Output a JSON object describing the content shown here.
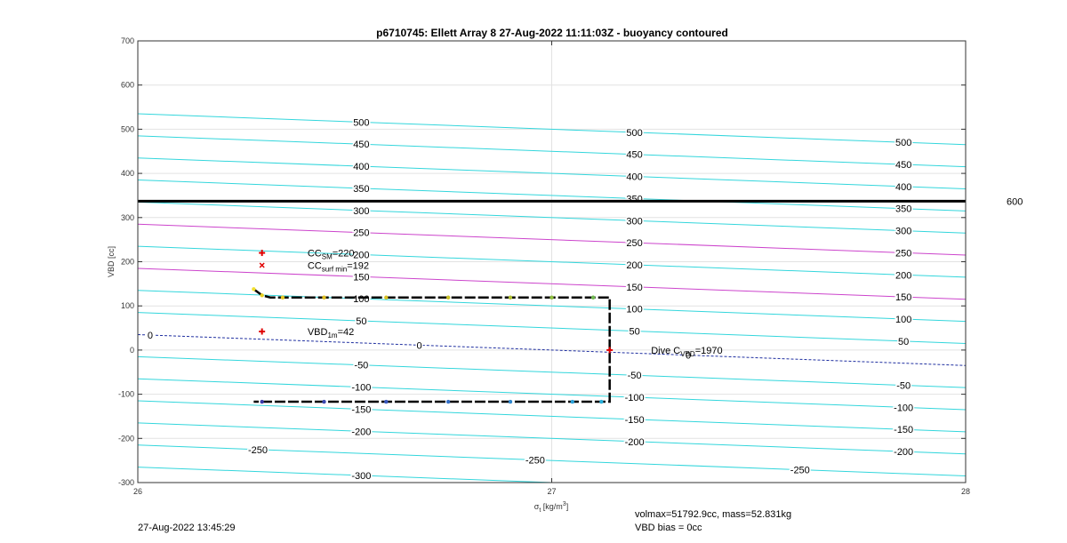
{
  "title": "p6710745: Ellett Array 8 27-Aug-2022 11:11:03Z - buoyancy contoured",
  "footer": {
    "timestamp": "27-Aug-2022 13:45:29",
    "mass_line": "volmax=51792.9cc, mass=52.831kg",
    "bias_line": "VBD bias = 0cc"
  },
  "colors": {
    "contour": "#33d6dc",
    "highlight_contour": "#cc44cc",
    "zero_contour": "#1f2fa0",
    "limit_line": "#000000",
    "marker": "#e00000",
    "track": "#000000"
  },
  "chart_data": {
    "type": "line",
    "xlabel_main": "σ",
    "xlabel_sub": "t",
    "xlabel_unit_pre": " [kg/m",
    "xlabel_unit_sup": "3",
    "xlabel_unit_post": "]",
    "ylabel": "VBD [cc]",
    "xlim": [
      26,
      28
    ],
    "ylim": [
      -300,
      700
    ],
    "xticks": [
      "26",
      "27",
      "28"
    ],
    "yticks": [
      "-300",
      "-200",
      "-100",
      "0",
      "100",
      "200",
      "300",
      "400",
      "500",
      "600",
      "700"
    ],
    "grid": true,
    "contour_slope_cc_per_kgm3": -35,
    "contour_levels": [
      -300,
      -250,
      -200,
      -150,
      -100,
      -50,
      0,
      50,
      100,
      150,
      200,
      250,
      300,
      350,
      400,
      450,
      500
    ],
    "highlight_levels": [
      150,
      250
    ],
    "contour_labels": [
      {
        "text": "500",
        "x": 26.54,
        "level": 500
      },
      {
        "text": "450",
        "x": 26.54,
        "level": 450
      },
      {
        "text": "400",
        "x": 26.54,
        "level": 400
      },
      {
        "text": "350",
        "x": 26.54,
        "level": 350
      },
      {
        "text": "300",
        "x": 26.54,
        "level": 300
      },
      {
        "text": "250",
        "x": 26.54,
        "level": 250
      },
      {
        "text": "200",
        "x": 26.54,
        "level": 200
      },
      {
        "text": "150",
        "x": 26.54,
        "level": 150
      },
      {
        "text": "100",
        "x": 26.54,
        "level": 100
      },
      {
        "text": "50",
        "x": 26.54,
        "level": 50
      },
      {
        "text": "0",
        "x": 26.68,
        "level": 0
      },
      {
        "text": "0",
        "x": 26.03,
        "level": 0
      },
      {
        "text": "-50",
        "x": 26.54,
        "level": -50
      },
      {
        "text": "-100",
        "x": 26.54,
        "level": -100
      },
      {
        "text": "-150",
        "x": 26.54,
        "level": -150
      },
      {
        "text": "-200",
        "x": 26.54,
        "level": -200
      },
      {
        "text": "-250",
        "x": 26.29,
        "level": -250
      },
      {
        "text": "-300",
        "x": 26.54,
        "level": -300
      },
      {
        "text": "-250",
        "x": 26.96,
        "level": -250
      },
      {
        "text": "500",
        "x": 27.2,
        "level": 500
      },
      {
        "text": "450",
        "x": 27.2,
        "level": 450
      },
      {
        "text": "400",
        "x": 27.2,
        "level": 400
      },
      {
        "text": "350",
        "x": 27.2,
        "level": 350
      },
      {
        "text": "300",
        "x": 27.2,
        "level": 300
      },
      {
        "text": "250",
        "x": 27.2,
        "level": 250
      },
      {
        "text": "200",
        "x": 27.2,
        "level": 200
      },
      {
        "text": "150",
        "x": 27.2,
        "level": 150
      },
      {
        "text": "100",
        "x": 27.2,
        "level": 100
      },
      {
        "text": "50",
        "x": 27.2,
        "level": 50
      },
      {
        "text": "0",
        "x": 27.33,
        "level": 0
      },
      {
        "text": "-50",
        "x": 27.2,
        "level": -50
      },
      {
        "text": "-100",
        "x": 27.2,
        "level": -100
      },
      {
        "text": "-150",
        "x": 27.2,
        "level": -150
      },
      {
        "text": "-200",
        "x": 27.2,
        "level": -200
      },
      {
        "text": "-250",
        "x": 27.6,
        "level": -250
      },
      {
        "text": "500",
        "x": 27.85,
        "level": 500
      },
      {
        "text": "450",
        "x": 27.85,
        "level": 450
      },
      {
        "text": "400",
        "x": 27.85,
        "level": 400
      },
      {
        "text": "350",
        "x": 27.85,
        "level": 350
      },
      {
        "text": "300",
        "x": 27.85,
        "level": 300
      },
      {
        "text": "250",
        "x": 27.85,
        "level": 250
      },
      {
        "text": "200",
        "x": 27.85,
        "level": 200
      },
      {
        "text": "150",
        "x": 27.85,
        "level": 150
      },
      {
        "text": "100",
        "x": 27.85,
        "level": 100
      },
      {
        "text": "50",
        "x": 27.85,
        "level": 50
      },
      {
        "text": "-50",
        "x": 27.85,
        "level": -50
      },
      {
        "text": "-100",
        "x": 27.85,
        "level": -100
      },
      {
        "text": "-150",
        "x": 27.85,
        "level": -150
      },
      {
        "text": "-200",
        "x": 27.85,
        "level": -200
      }
    ],
    "limit_line": {
      "y": 337,
      "label": "600"
    },
    "track": {
      "x": [
        26.28,
        26.3,
        26.32,
        27.14,
        27.14,
        27.14,
        26.28
      ],
      "y": [
        138,
        124,
        119,
        119,
        0,
        -117,
        -117
      ]
    },
    "track_points": [
      {
        "x": 26.28,
        "y": 138,
        "color": "#f2e030"
      },
      {
        "x": 26.3,
        "y": 124,
        "color": "#e8d020"
      },
      {
        "x": 26.35,
        "y": 119,
        "color": "#e8c820"
      },
      {
        "x": 26.45,
        "y": 119,
        "color": "#e0c020"
      },
      {
        "x": 26.6,
        "y": 119,
        "color": "#d8c020"
      },
      {
        "x": 26.75,
        "y": 119,
        "color": "#c8c028"
      },
      {
        "x": 26.9,
        "y": 119,
        "color": "#b0c030"
      },
      {
        "x": 27.0,
        "y": 119,
        "color": "#90c040"
      },
      {
        "x": 27.1,
        "y": 119,
        "color": "#70b850"
      },
      {
        "x": 26.3,
        "y": -117,
        "color": "#3a3aa8"
      },
      {
        "x": 26.45,
        "y": -117,
        "color": "#3a48b0"
      },
      {
        "x": 26.6,
        "y": -117,
        "color": "#3858c0"
      },
      {
        "x": 26.75,
        "y": -117,
        "color": "#3470c8"
      },
      {
        "x": 26.9,
        "y": -117,
        "color": "#2e88d0"
      },
      {
        "x": 27.05,
        "y": -117,
        "color": "#2aa0d8"
      },
      {
        "x": 27.12,
        "y": -117,
        "color": "#28b0dc"
      }
    ],
    "markers": [
      {
        "kind": "plus",
        "x": 26.3,
        "y": 220
      },
      {
        "kind": "cross",
        "x": 26.3,
        "y": 192
      },
      {
        "kind": "plus",
        "x": 26.3,
        "y": 42
      },
      {
        "kind": "plus",
        "x": 27.14,
        "y": 0
      }
    ],
    "annotations": [
      {
        "main": "CC",
        "sub": "SM",
        "rest": "=220",
        "x": 26.41,
        "y": 220
      },
      {
        "main": "CC",
        "sub": "surf min",
        "rest": "=192",
        "x": 26.41,
        "y": 192
      },
      {
        "main": "VBD",
        "sub": "1m",
        "rest": "=42",
        "x": 26.41,
        "y": 42
      },
      {
        "main": "Dive C",
        "sub": "VBD",
        "rest": "=1970",
        "x": 27.24,
        "y": 0
      }
    ]
  }
}
